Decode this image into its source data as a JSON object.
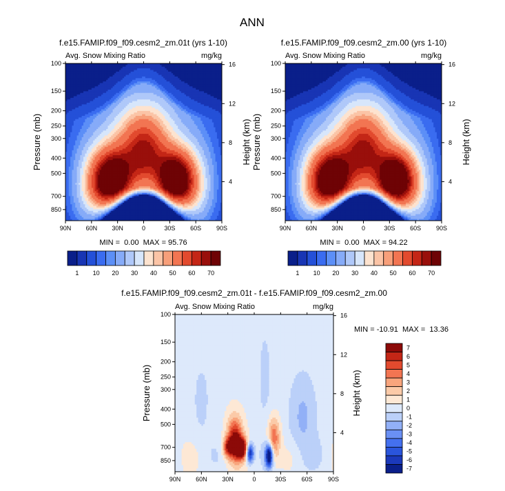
{
  "main_title": "ANN",
  "colors": {
    "full_field": [
      "#0a1f8a",
      "#1835b4",
      "#2450d8",
      "#3a6cf0",
      "#5c8ff7",
      "#86abf8",
      "#afc8f9",
      "#d7e6fb",
      "#fde3cf",
      "#fbc4a6",
      "#f79f7a",
      "#f27552",
      "#e24a2e",
      "#c42616",
      "#990f0b",
      "#6e0305"
    ],
    "diff_field": [
      "#0a1f8a",
      "#1b39bb",
      "#2a55dc",
      "#4470ef",
      "#6a90f4",
      "#92b0f7",
      "#bbd0f9",
      "#dde9fb",
      "#fde8d5",
      "#fbcaa8",
      "#f8a57d",
      "#f27552",
      "#e24a2e",
      "#c42616",
      "#8c0a08"
    ]
  },
  "chart_data": [
    {
      "type": "heatmap",
      "panel": "top-left",
      "title": "f.e15.FAMIP.f09_f09.cesm2_zm.01t (yrs 1-10)",
      "left_string": "Avg. Snow Mixing Ratio",
      "right_string": "mg/kg",
      "xlabel": "",
      "ylabel": "Pressure (mb)",
      "ylabel_right": "Height (km)",
      "x_ticks": [
        "90N",
        "60N",
        "30N",
        "0",
        "30S",
        "60S",
        "90S"
      ],
      "y_ticks": [
        "100",
        "150",
        "200",
        "250",
        "300",
        "400",
        "500",
        "700",
        "850"
      ],
      "y_ticks_right": [
        "16",
        "12",
        "8",
        "4"
      ],
      "ylim": [
        1000,
        100
      ],
      "stats": "MIN =  0.00  MAX = 95.76",
      "min": 0.0,
      "max": 95.76,
      "colorbar_labels": [
        "1",
        "10",
        "20",
        "30",
        "40",
        "50",
        "60",
        "70"
      ]
    },
    {
      "type": "heatmap",
      "panel": "top-right",
      "title": "f.e15.FAMIP.f09_f09.cesm2_zm.00 (yrs 1-10)",
      "left_string": "Avg. Snow Mixing Ratio",
      "right_string": "mg/kg",
      "xlabel": "",
      "ylabel": "Pressure (mb)",
      "ylabel_right": "Height (km)",
      "x_ticks": [
        "90N",
        "60N",
        "30N",
        "0",
        "30S",
        "60S",
        "90S"
      ],
      "y_ticks": [
        "100",
        "150",
        "200",
        "250",
        "300",
        "400",
        "500",
        "700",
        "850"
      ],
      "y_ticks_right": [
        "16",
        "12",
        "8",
        "4"
      ],
      "ylim": [
        1000,
        100
      ],
      "stats": "MIN =  0.00  MAX = 94.22",
      "min": 0.0,
      "max": 94.22,
      "colorbar_labels": [
        "1",
        "10",
        "20",
        "30",
        "40",
        "50",
        "60",
        "70"
      ]
    },
    {
      "type": "heatmap",
      "panel": "bottom",
      "title": "f.e15.FAMIP.f09_f09.cesm2_zm.01t - f.e15.FAMIP.f09_f09.cesm2_zm.00",
      "left_string": "Avg. Snow Mixing Ratio",
      "right_string": "mg/kg",
      "xlabel": "",
      "ylabel": "Pressure (mb)",
      "ylabel_right": "Height (km)",
      "x_ticks": [
        "90N",
        "60N",
        "30N",
        "0",
        "30S",
        "60S",
        "90S"
      ],
      "y_ticks": [
        "100",
        "150",
        "200",
        "250",
        "300",
        "400",
        "500",
        "700",
        "850"
      ],
      "y_ticks_right": [
        "16",
        "12",
        "8",
        "4"
      ],
      "ylim": [
        1000,
        100
      ],
      "stats": "MIN = -10.91  MAX =  13.36",
      "min": -10.91,
      "max": 13.36,
      "colorbar_labels": [
        "7",
        "6",
        "5",
        "4",
        "3",
        "2",
        "1",
        "0",
        "-1",
        "-2",
        "-3",
        "-4",
        "-5",
        "-6",
        "-7"
      ]
    }
  ]
}
